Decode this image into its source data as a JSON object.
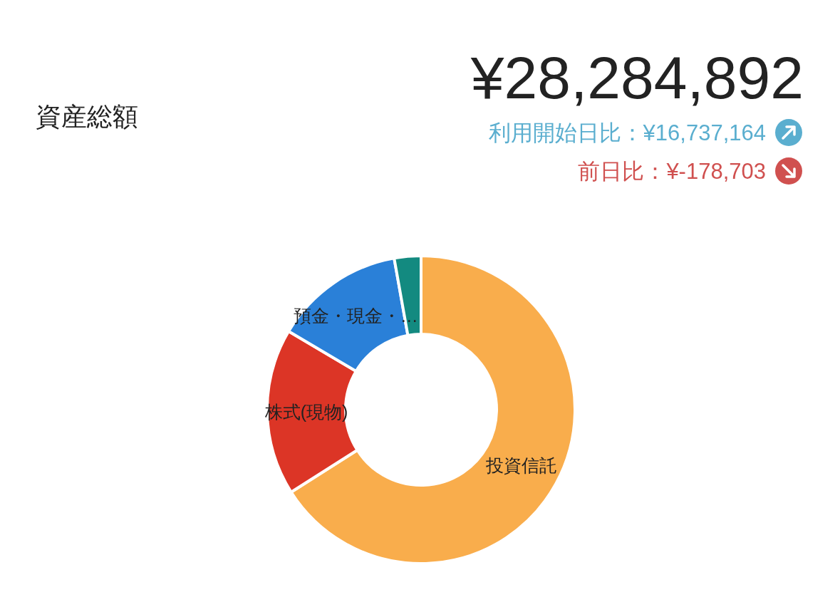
{
  "chart_data": {
    "type": "donut",
    "title": "資産総額",
    "subtitle": "¥28,284,892",
    "annotations": [
      "利用開始日比：¥16,737,164",
      "前日比：¥-178,703"
    ],
    "categories": [
      "投資信託",
      "株式(現物)",
      "預金・現金・…",
      null
    ],
    "values": [
      66,
      17.5,
      13.7,
      2.8
    ],
    "colors": [
      "#f9ad4c",
      "#dc3526",
      "#2a80d8",
      "#138a80"
    ]
  }
}
